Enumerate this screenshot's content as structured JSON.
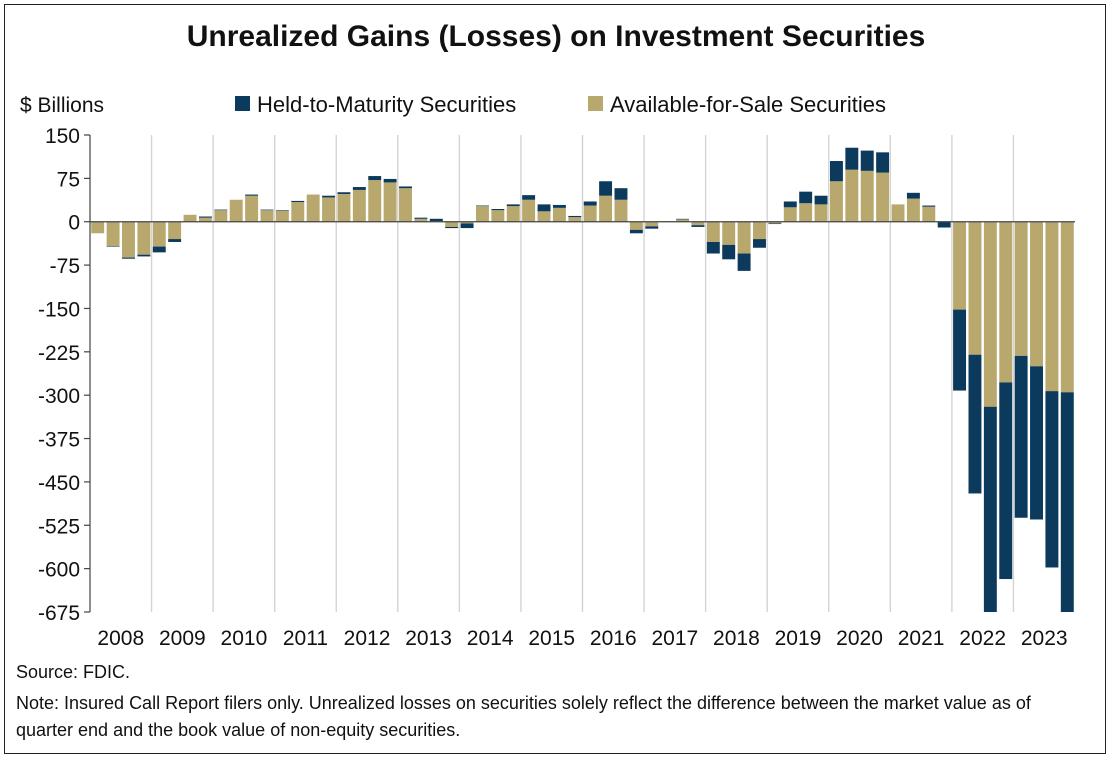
{
  "chart_data": {
    "type": "bar",
    "stacked": true,
    "title": "Unrealized Gains (Losses) on Investment Securities",
    "ylabel": "$ Billions",
    "ylim": [
      -675,
      150
    ],
    "yticks": [
      150,
      75,
      0,
      -75,
      -150,
      -225,
      -300,
      -375,
      -450,
      -525,
      -600,
      -675
    ],
    "ytick_labels": [
      "150",
      "75",
      "0",
      "-75",
      "-150",
      "-225",
      "-300",
      "-375",
      "-450",
      "-525",
      "-600",
      "-675"
    ],
    "xtick_labels": [
      "2008",
      "2009",
      "2010",
      "2011",
      "2012",
      "2013",
      "2014",
      "2015",
      "2016",
      "2017",
      "2018",
      "2019",
      "2020",
      "2021",
      "2022",
      "2023"
    ],
    "legend_position": "top",
    "grid": "vertical at year boundaries",
    "quarters_per_year": 4,
    "colors": {
      "htm": "#0b3a5c",
      "afs": "#b8a86e"
    },
    "series": [
      {
        "name": "Held-to-Maturity Securities",
        "values": [
          0,
          -1,
          -2,
          -3,
          -10,
          -5,
          0,
          2,
          1,
          0,
          2,
          1,
          1,
          2,
          0,
          3,
          3,
          5,
          7,
          6,
          3,
          2,
          -4,
          -2,
          -8,
          1,
          2,
          3,
          8,
          12,
          5,
          2,
          7,
          25,
          20,
          -6,
          -4,
          0,
          1,
          -3,
          -20,
          -25,
          -30,
          -15,
          -1,
          10,
          20,
          15,
          35,
          38,
          35,
          35,
          0,
          10,
          2,
          -10,
          -140,
          -240,
          -360,
          -340,
          -280,
          -265,
          -305,
          -380
        ]
      },
      {
        "name": "Available-for-Sale Securities",
        "values": [
          -20,
          -42,
          -62,
          -57,
          -43,
          -30,
          12,
          7,
          20,
          38,
          45,
          20,
          19,
          34,
          47,
          42,
          48,
          55,
          72,
          68,
          58,
          5,
          5,
          -9,
          -3,
          27,
          20,
          27,
          38,
          18,
          24,
          8,
          28,
          45,
          38,
          -14,
          -8,
          1,
          4,
          -6,
          -35,
          -40,
          -55,
          -30,
          -3,
          25,
          32,
          30,
          70,
          90,
          88,
          85,
          30,
          40,
          26,
          0,
          -152,
          -230,
          -320,
          -278,
          -232,
          -250,
          -293,
          -295
        ]
      }
    ]
  },
  "footer": {
    "source": "Source: FDIC.",
    "note": "Note: Insured Call Report filers only. Unrealized losses on securities solely reflect the difference between the market value as of quarter end and the book value of non-equity securities."
  }
}
